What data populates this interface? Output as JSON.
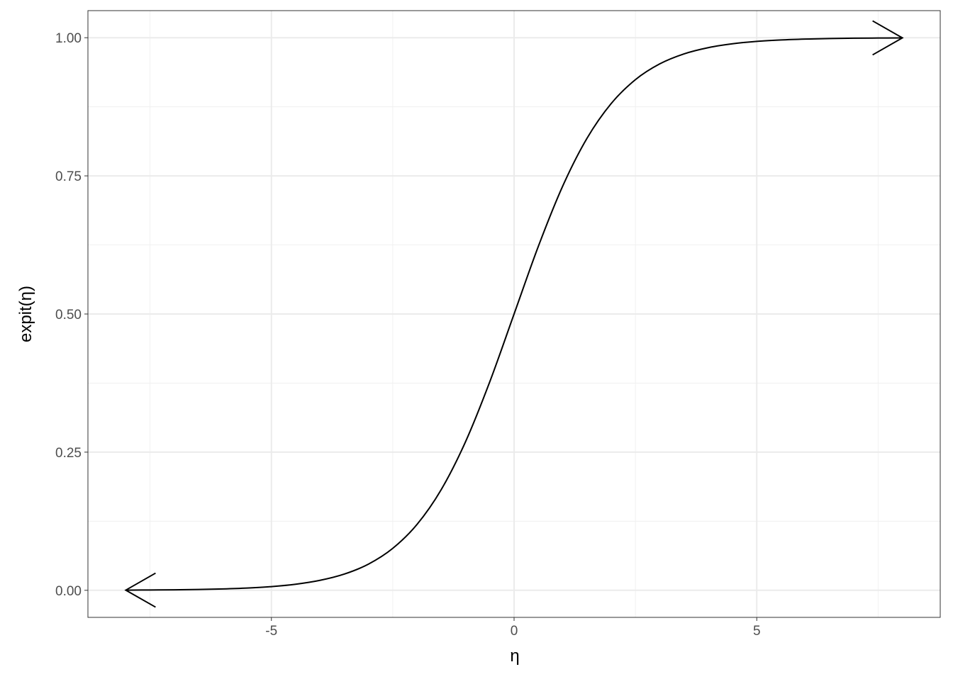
{
  "chart_data": {
    "type": "line",
    "title": "",
    "xlabel": "η",
    "ylabel": "expit(η)",
    "xlim": [
      -8.78,
      8.78
    ],
    "ylim": [
      -0.049,
      1.049
    ],
    "x_ticks": [
      -5,
      0,
      5
    ],
    "x_tick_labels": [
      "-5",
      "0",
      "5"
    ],
    "y_ticks": [
      0,
      0.25,
      0.5,
      0.75,
      1
    ],
    "y_tick_labels": [
      "0.00",
      "0.25",
      "0.50",
      "0.75",
      "1.00"
    ],
    "grid": true,
    "arrows": "both ends, open",
    "line_color": "#000000",
    "series": [
      {
        "x": [
          -8,
          -7.5,
          -7,
          -6.5,
          -6,
          -5.5,
          -5,
          -4.5,
          -4,
          -3.5,
          -3,
          -2.5,
          -2,
          -1.5,
          -1,
          -0.5,
          0,
          0.5,
          1,
          1.5,
          2,
          2.5,
          3,
          3.5,
          4,
          4.5,
          5,
          5.5,
          6,
          6.5,
          7,
          7.5,
          8
        ],
        "y": [
          0.0003,
          0.0006,
          0.0009,
          0.0015,
          0.0025,
          0.0041,
          0.0067,
          0.011,
          0.018,
          0.0293,
          0.0474,
          0.0759,
          0.1192,
          0.1824,
          0.2689,
          0.3775,
          0.5,
          0.6225,
          0.7311,
          0.8176,
          0.8808,
          0.9241,
          0.9526,
          0.9707,
          0.982,
          0.989,
          0.9933,
          0.9959,
          0.9975,
          0.9985,
          0.9991,
          0.9994,
          0.9997
        ]
      }
    ]
  }
}
